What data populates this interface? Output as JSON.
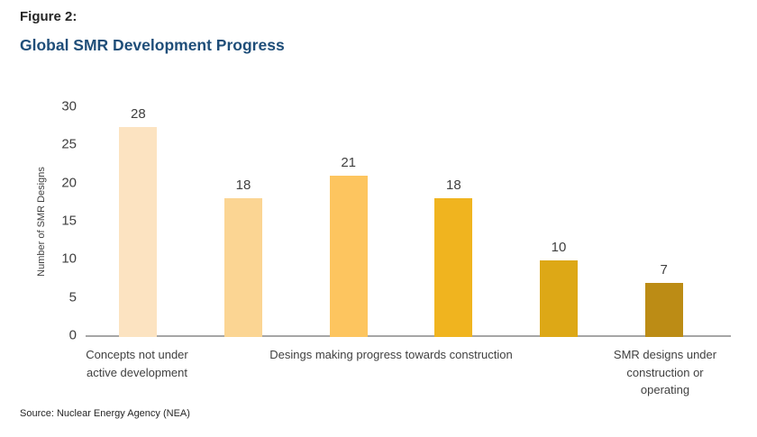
{
  "header": {
    "figure_label": "Figure 2:",
    "title": "Global SMR Development Progress"
  },
  "footer": {
    "source": "Source: Nuclear Energy Agency (NEA)"
  },
  "colors": {
    "title": "#1F4E79",
    "text": "#404040",
    "axis_line": "#A6A6A6"
  },
  "chart_data": {
    "type": "bar",
    "title": "Global SMR Development Progress",
    "xlabel": "",
    "ylabel": "Number of SMR Designs",
    "ylim": [
      0,
      30
    ],
    "yticks": [
      30,
      25,
      20,
      15,
      10,
      5,
      0
    ],
    "grid": false,
    "legend": false,
    "values": [
      28,
      18,
      21,
      18,
      10,
      7
    ],
    "bar_colors": [
      "#FCE3C1",
      "#FBD593",
      "#FDC55F",
      "#F0B41F",
      "#DDA816",
      "#BC8C15"
    ],
    "axis_group_labels": [
      {
        "text": "Concepts not under active development",
        "lines": [
          "Concepts not under",
          "active development"
        ],
        "spans_bars": [
          1
        ]
      },
      {
        "text": "Desings making progress towards construction",
        "lines": [
          "Desings making progress towards construction"
        ],
        "spans_bars": [
          2,
          3,
          4,
          5
        ]
      },
      {
        "text": "SMR designs under construction or operating",
        "lines": [
          "SMR designs under",
          "construction or",
          "operating"
        ],
        "spans_bars": [
          6
        ]
      }
    ]
  }
}
